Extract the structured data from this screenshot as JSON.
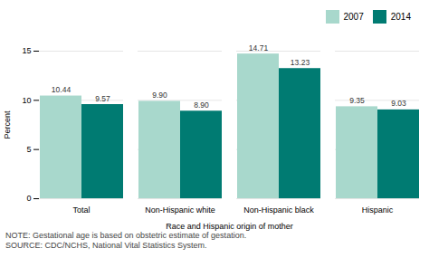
{
  "chart_data": {
    "type": "bar",
    "categories": [
      "Total",
      "Non-Hispanic white",
      "Non-Hispanic black",
      "Hispanic"
    ],
    "series": [
      {
        "name": "2007",
        "color": "#a8d8cc",
        "values": [
          10.44,
          9.9,
          14.71,
          9.35
        ],
        "value_labels": [
          "10.44",
          "9.90",
          "14.71",
          "9.35"
        ]
      },
      {
        "name": "2014",
        "color": "#007b72",
        "values": [
          9.57,
          8.9,
          13.23,
          9.03
        ],
        "value_labels": [
          "9.57",
          "8.90",
          "13.23",
          "9.03"
        ]
      }
    ],
    "xlabel": "Race and Hispanic origin of mother",
    "ylabel": "Percent",
    "ylim": [
      0,
      15
    ],
    "yticks": [
      0,
      5,
      10,
      15
    ],
    "grid": true,
    "legend": "upper right",
    "data_labels": true,
    "annotations": [
      "NOTE: Gestational age is based on obstetric estimate of gestation.",
      "SOURCE: CDC/NCHS, National Vital Statistics System."
    ]
  }
}
